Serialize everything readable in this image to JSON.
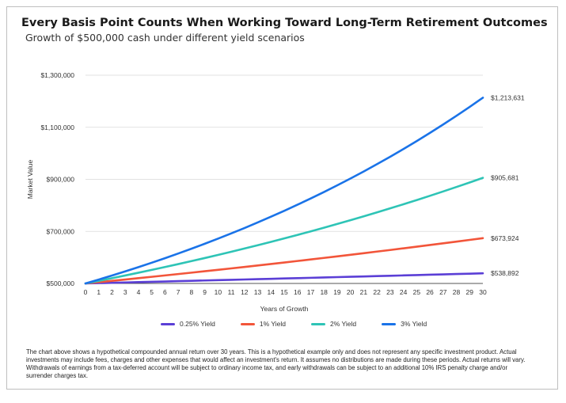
{
  "title": "Every Basis Point Counts When Working Toward Long-Term Retirement Outcomes",
  "subtitle": "Growth of $500,000 cash under different yield scenarios",
  "footnote": "The chart above shows a hypothetical compounded annual return over 30 years. This is a hypothetical example only and does not represent any specific investment product. Actual investments may include fees, charges and other expenses that would affect an investment's return. It assumes no distributions are made during these periods. Actual returns will vary. Withdrawals of earnings from a tax-deferred account will be subject to ordinary income tax, and early withdrawals can be subject to an additional 10% IRS penalty charge and/or surrender charges tax.",
  "chart_data": {
    "type": "line",
    "xlabel": "Years of Growth",
    "ylabel": "Market Value",
    "ylim": [
      500000,
      1300000
    ],
    "yticks": [
      500000,
      700000,
      900000,
      1100000,
      1300000
    ],
    "ytick_labels": [
      "$500,000",
      "$700,000",
      "$900,000",
      "$1,100,000",
      "$1,300,000"
    ],
    "x": [
      0,
      1,
      2,
      3,
      4,
      5,
      6,
      7,
      8,
      9,
      10,
      11,
      12,
      13,
      14,
      15,
      16,
      17,
      18,
      19,
      20,
      21,
      22,
      23,
      24,
      25,
      26,
      27,
      28,
      29,
      30
    ],
    "grid": "horizontal",
    "legend_position": "bottom",
    "series": [
      {
        "name": "0.25% Yield",
        "color": "#5b3fd6",
        "end_label": "$538,892",
        "values": [
          500000,
          501250,
          502503,
          503759,
          505019,
          506281,
          507547,
          508816,
          510088,
          511363,
          512642,
          513923,
          515208,
          516496,
          517787,
          519082,
          520379,
          521680,
          522984,
          524292,
          525603,
          526917,
          528234,
          529554,
          530878,
          532205,
          533536,
          534870,
          536207,
          537547,
          538892
        ]
      },
      {
        "name": "1% Yield",
        "color": "#f2553a",
        "end_label": "$673,924",
        "values": [
          500000,
          505000,
          510050,
          515151,
          520302,
          525505,
          530760,
          536068,
          541428,
          546843,
          552311,
          557834,
          563413,
          569047,
          574737,
          580484,
          586289,
          592152,
          598074,
          604054,
          610095,
          616196,
          622358,
          628582,
          634868,
          641216,
          647628,
          654105,
          660646,
          667252,
          673924
        ]
      },
      {
        "name": "2% Yield",
        "color": "#2ec4b6",
        "end_label": "$905,681",
        "values": [
          500000,
          510000,
          520200,
          530604,
          541216,
          552040,
          563081,
          574343,
          585830,
          597546,
          609497,
          621687,
          634121,
          646803,
          659739,
          672934,
          686393,
          700121,
          714123,
          728406,
          742974,
          757833,
          772990,
          788450,
          804219,
          820303,
          836709,
          853443,
          870512,
          887923,
          905681
        ]
      },
      {
        "name": "3% Yield",
        "color": "#1a73e8",
        "end_label": "$1,213,631",
        "values": [
          500000,
          515000,
          530450,
          546364,
          562754,
          579637,
          597026,
          614937,
          633385,
          652387,
          671958,
          692117,
          712880,
          734267,
          756295,
          778984,
          802353,
          826424,
          851216,
          876753,
          903055,
          930147,
          958051,
          986793,
          1016396,
          1046888,
          1078295,
          1110643,
          1143963,
          1178281,
          1213631
        ]
      }
    ]
  }
}
